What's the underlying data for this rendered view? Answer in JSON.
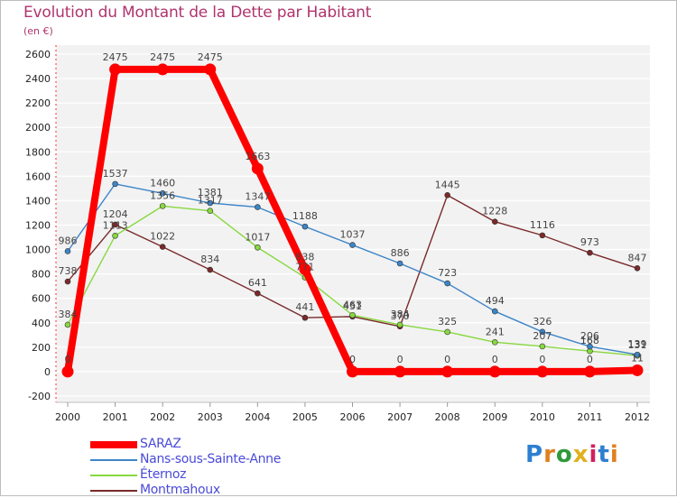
{
  "title": "Evolution du Montant de la Dette par Habitant",
  "subtitle": "(en €)",
  "logo": {
    "text": "Proxiti",
    "colors": [
      "#2e7fd0",
      "#e08020",
      "#2e9a3a",
      "#e0b020",
      "#d02060",
      "#2e7fd0",
      "#e08020"
    ]
  },
  "chart_data": {
    "type": "line",
    "title": "Evolution du Montant de la Dette par Habitant",
    "subtitle": "(en €)",
    "xlabel": "",
    "ylabel": "",
    "ylim": [
      -200,
      2600
    ],
    "y_ticks": [
      -200,
      0,
      200,
      400,
      600,
      800,
      1000,
      1200,
      1400,
      1600,
      1800,
      2000,
      2200,
      2400,
      2600
    ],
    "x": [
      "2000",
      "2001",
      "2002",
      "2003",
      "2004",
      "2005",
      "2006",
      "2007",
      "2008",
      "2009",
      "2010",
      "2011",
      "2012"
    ],
    "grid": "horizontal",
    "legend_position": "bottom-left",
    "series": [
      {
        "name": "SARAZ",
        "color": "#ff0000",
        "values": [
          0,
          2475,
          2475,
          2475,
          1663,
          838,
          0,
          0,
          0,
          0,
          0,
          0,
          11
        ]
      },
      {
        "name": "Nans-sous-Sainte-Anne",
        "color": "#3d85c8",
        "values": [
          986,
          1537,
          1460,
          1381,
          1347,
          1188,
          1037,
          886,
          723,
          494,
          326,
          206,
          139
        ]
      },
      {
        "name": "Éternoz",
        "color": "#88d840",
        "values": [
          384,
          1113,
          1356,
          1317,
          1017,
          771,
          463,
          384,
          325,
          241,
          207,
          168,
          131
        ]
      },
      {
        "name": "Montmahoux",
        "color": "#7a2a2a",
        "values": [
          738,
          1204,
          1022,
          834,
          641,
          441,
          451,
          370,
          1445,
          1228,
          1116,
          973,
          847
        ]
      }
    ],
    "data_labels": [
      [
        "0",
        "2475",
        "2475",
        "2475",
        "1663",
        "838",
        "0",
        "0",
        "0",
        "0",
        "0",
        "0",
        "11"
      ],
      [
        "986",
        "1537",
        "1460",
        "1381",
        "1347",
        "1188",
        "1037",
        "886",
        "723",
        "494",
        "326",
        "206",
        "139"
      ],
      [
        "384",
        "1113",
        "1356",
        "1317",
        "1017",
        "771",
        "463",
        "384",
        "325",
        "241",
        "207",
        "168",
        "131"
      ],
      [
        "738",
        "1204",
        "1022",
        "834",
        "641",
        "441",
        "451",
        "370",
        "1445",
        "1228",
        "1116",
        "973",
        "847"
      ]
    ]
  }
}
